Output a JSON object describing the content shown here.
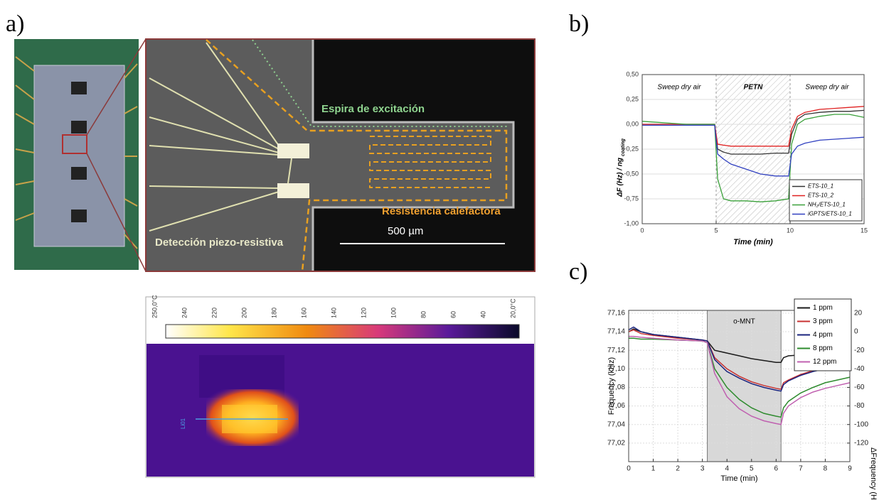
{
  "panel_labels": [
    "a)",
    "b)",
    "c)"
  ],
  "micrograph": {
    "labels": [
      "Espira de excitación",
      "Resistencia calefactora",
      "Detección piezo-resistiva"
    ],
    "scale_bar": "500 µm"
  },
  "thermal": {
    "scale_labels": [
      "250,0°C",
      "240",
      "220",
      "200",
      "180",
      "160",
      "140",
      "120",
      "100",
      "80",
      "60",
      "40",
      "20,0°C"
    ],
    "line_label": "Li01"
  },
  "chart_data": [
    {
      "type": "line",
      "xlabel": "Time (min)",
      "ylabel": "ΔF (Hz) / ng",
      "ylabel_sub": "coating",
      "annotations": [
        "Sweep dry air",
        "PETN",
        "Sweep dry air"
      ],
      "hatched": [
        5,
        10
      ],
      "x": [
        0,
        1,
        2,
        3,
        4,
        4.9,
        5.1,
        5.5,
        6,
        7,
        8,
        9,
        9.9,
        10.1,
        10.5,
        11,
        12,
        13,
        14,
        15
      ],
      "series": [
        {
          "name": "ETS-10_1",
          "color": "#333333",
          "values": [
            0,
            0,
            0,
            0,
            0,
            0,
            -0.25,
            -0.28,
            -0.3,
            -0.3,
            -0.3,
            -0.29,
            -0.29,
            -0.1,
            0.05,
            0.1,
            0.12,
            0.13,
            0.13,
            0.14
          ]
        },
        {
          "name": "ETS-10_2",
          "color": "#e02020",
          "values": [
            0,
            0,
            0,
            0,
            0,
            0,
            -0.2,
            -0.21,
            -0.22,
            -0.22,
            -0.22,
            -0.22,
            -0.22,
            -0.05,
            0.08,
            0.12,
            0.15,
            0.16,
            0.17,
            0.18
          ]
        },
        {
          "name": "NH₂/ETS-10_1",
          "color": "#3aa03a",
          "values": [
            0.03,
            0.02,
            0.01,
            0,
            0,
            0,
            -0.55,
            -0.75,
            -0.77,
            -0.77,
            -0.78,
            -0.77,
            -0.75,
            -0.2,
            0,
            0.05,
            0.08,
            0.1,
            0.1,
            0.07
          ]
        },
        {
          "name": "iGPTS/ETS-10_1",
          "color": "#3040c0",
          "values": [
            -0.01,
            -0.01,
            -0.01,
            -0.01,
            -0.01,
            -0.01,
            -0.3,
            -0.35,
            -0.4,
            -0.45,
            -0.5,
            -0.52,
            -0.52,
            -0.3,
            -0.22,
            -0.19,
            -0.16,
            -0.15,
            -0.14,
            -0.13
          ]
        }
      ],
      "xlim": [
        0,
        15
      ],
      "xticks": [
        0,
        5,
        10,
        15
      ],
      "ylim": [
        -1,
        0.5
      ],
      "yticks": [
        {
          "value": -1,
          "label": "-1,00"
        },
        {
          "value": -0.75,
          "label": "-0,75"
        },
        {
          "value": -0.5,
          "label": "-0,50"
        },
        {
          "value": -0.25,
          "label": "-0,25"
        },
        {
          "value": 0,
          "label": "0,00"
        },
        {
          "value": 0.25,
          "label": "0,25"
        },
        {
          "value": 0.5,
          "label": "0,50"
        }
      ],
      "grid": true,
      "legend": "lower-right"
    },
    {
      "type": "line",
      "xlabel": "Time (min)",
      "ylabel": "Frequency (kHz)",
      "y2label": "ΔFrequency (Hz)",
      "annotations": [
        "o-MNT"
      ],
      "shaded": [
        3.2,
        6.2
      ],
      "x": [
        0,
        0.2,
        0.5,
        1,
        2,
        3,
        3.2,
        3.5,
        4,
        4.5,
        5,
        5.5,
        6,
        6.2,
        6.3,
        6.5,
        7,
        7.5,
        8,
        8.5,
        9
      ],
      "series": [
        {
          "name": "1 ppm",
          "color": "#1a1a1a",
          "values": [
            77.14,
            77.143,
            77.14,
            77.137,
            77.134,
            77.131,
            77.13,
            77.12,
            77.117,
            77.114,
            77.111,
            77.109,
            77.107,
            77.107,
            77.112,
            77.114,
            77.115,
            77.115,
            77.115,
            77.115,
            77.115
          ]
        },
        {
          "name": "3 ppm",
          "color": "#c83232",
          "values": [
            77.14,
            77.142,
            77.138,
            77.136,
            77.133,
            77.131,
            77.13,
            77.112,
            77.1,
            77.092,
            77.086,
            77.082,
            77.079,
            77.078,
            77.085,
            77.088,
            77.094,
            77.098,
            77.1,
            77.102,
            77.103
          ]
        },
        {
          "name": "4 ppm",
          "color": "#1a237e",
          "values": [
            77.142,
            77.145,
            77.14,
            77.137,
            77.134,
            77.131,
            77.13,
            77.11,
            77.097,
            77.09,
            77.084,
            77.08,
            77.077,
            77.076,
            77.083,
            77.087,
            77.093,
            77.097,
            77.1,
            77.102,
            77.103
          ]
        },
        {
          "name": "8 ppm",
          "color": "#2e8b2e",
          "values": [
            77.133,
            77.133,
            77.132,
            77.132,
            77.131,
            77.13,
            77.128,
            77.1,
            77.08,
            77.067,
            77.058,
            77.052,
            77.049,
            77.048,
            77.058,
            77.065,
            77.074,
            77.08,
            77.085,
            77.088,
            77.091
          ]
        },
        {
          "name": "12 ppm",
          "color": "#c060b0",
          "values": [
            77.135,
            77.135,
            77.134,
            77.133,
            77.131,
            77.13,
            77.128,
            77.095,
            77.07,
            77.057,
            77.049,
            77.044,
            77.041,
            77.04,
            77.052,
            77.06,
            77.069,
            77.075,
            77.079,
            77.082,
            77.085
          ]
        }
      ],
      "xlim": [
        0,
        9
      ],
      "xticks": [
        0,
        1,
        2,
        3,
        4,
        5,
        6,
        7,
        8,
        9
      ],
      "ylim": [
        77.0,
        77.163
      ],
      "yticks": [
        {
          "value": 77.02,
          "label": "77,02"
        },
        {
          "value": 77.04,
          "label": "77,04"
        },
        {
          "value": 77.06,
          "label": "77,06"
        },
        {
          "value": 77.08,
          "label": "77,08"
        },
        {
          "value": 77.1,
          "label": "77,10"
        },
        {
          "value": 77.12,
          "label": "77,12"
        },
        {
          "value": 77.14,
          "label": "77,14"
        },
        {
          "value": 77.16,
          "label": "77,16"
        }
      ],
      "y2lim": [
        -140,
        23
      ],
      "y2ticks": [
        -120,
        -100,
        -80,
        -60,
        -40,
        -20,
        0,
        20
      ],
      "grid": true,
      "legend": "upper-right"
    }
  ]
}
